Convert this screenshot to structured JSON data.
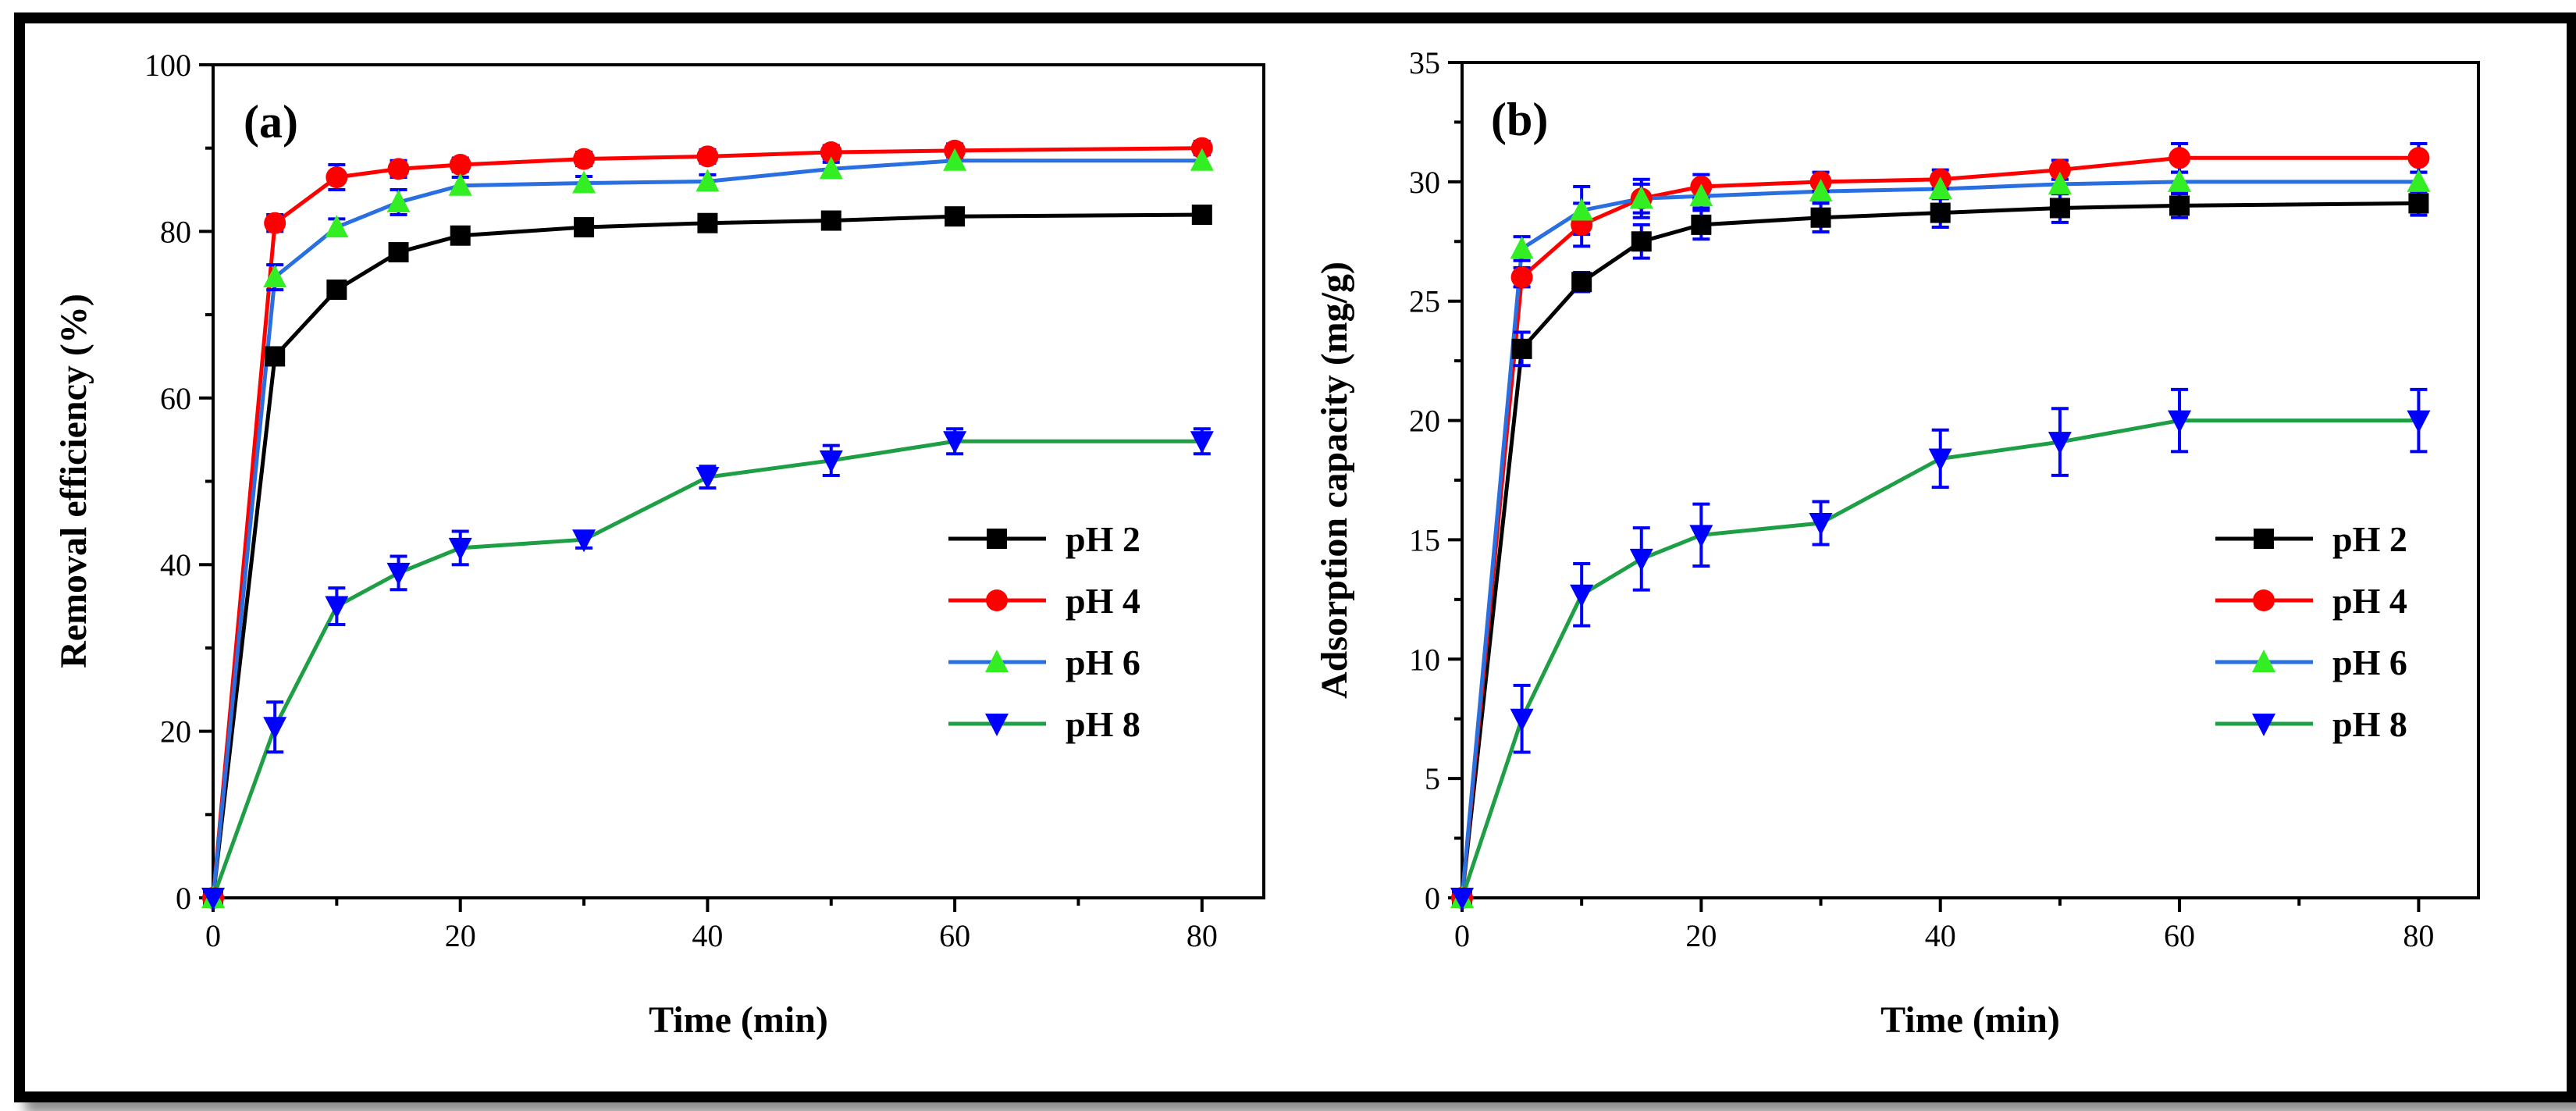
{
  "chart_data": [
    {
      "type": "line",
      "panel_label": "(a)",
      "xlabel": "Time (min)",
      "ylabel": "Removal efficiency (%)",
      "xlim": [
        0,
        85
      ],
      "ylim": [
        0,
        100
      ],
      "xticks": [
        "0",
        "20",
        "40",
        "60",
        "80"
      ],
      "yticks": [
        "0",
        "20",
        "40",
        "60",
        "80",
        "100"
      ],
      "x": [
        0,
        5,
        10,
        15,
        20,
        30,
        40,
        50,
        60,
        80
      ],
      "legend_position": "center-right",
      "series": [
        {
          "name": "pH 2",
          "color": "#000000",
          "marker": "square",
          "values": [
            0,
            65,
            73,
            77.5,
            79.5,
            80.5,
            81,
            81.3,
            81.8,
            82
          ],
          "errors": [
            0,
            1,
            1,
            1,
            0.8,
            0.8,
            0.8,
            0.8,
            0.8,
            0.8
          ]
        },
        {
          "name": "pH 4",
          "color": "#ff0000",
          "marker": "circle",
          "values": [
            0,
            81,
            86.5,
            87.5,
            88,
            88.7,
            89,
            89.5,
            89.7,
            90
          ],
          "errors": [
            0,
            1,
            1.5,
            1,
            0.8,
            0.8,
            0.8,
            0.8,
            0.8,
            0.8
          ]
        },
        {
          "name": "pH 6",
          "color": "#2a6fe0",
          "marker": "triangle-up",
          "values": [
            0,
            74.5,
            80.5,
            83.5,
            85.5,
            85.8,
            86,
            87.5,
            88.5,
            88.5
          ],
          "errors": [
            0,
            1.5,
            1,
            1.5,
            1,
            0.8,
            0.8,
            0.8,
            0.8,
            0.8
          ]
        },
        {
          "name": "pH 8",
          "color": "#1e9e45",
          "marker": "triangle-down",
          "values": [
            0,
            20.5,
            35,
            39,
            42,
            43,
            50.5,
            52.5,
            54.8,
            54.8
          ],
          "errors": [
            0,
            3,
            2.2,
            2,
            2,
            1,
            1.3,
            1.8,
            1.5,
            1.5
          ]
        }
      ],
      "marker_colors": {
        "pH 2": "#000000",
        "pH 4": "#ff0000",
        "pH 6": "#33ee22",
        "pH 8": "#0000ff"
      },
      "errorbar_color": "#0000ff"
    },
    {
      "type": "line",
      "panel_label": "(b)",
      "xlabel": "Time (min)",
      "ylabel": "Adsorption capacity (mg/g)",
      "xlim": [
        0,
        85
      ],
      "ylim": [
        0,
        35
      ],
      "xticks": [
        "0",
        "20",
        "40",
        "60",
        "80"
      ],
      "yticks": [
        "0",
        "5",
        "10",
        "15",
        "20",
        "25",
        "30",
        "35"
      ],
      "x": [
        0,
        5,
        10,
        15,
        20,
        30,
        40,
        50,
        60,
        80
      ],
      "legend_position": "center-right",
      "series": [
        {
          "name": "pH 2",
          "color": "#000000",
          "marker": "square",
          "values": [
            0,
            23,
            25.8,
            27.5,
            28.2,
            28.5,
            28.7,
            28.9,
            29,
            29.1
          ],
          "errors": [
            0,
            0.7,
            0.4,
            0.7,
            0.6,
            0.6,
            0.6,
            0.6,
            0.5,
            0.5
          ]
        },
        {
          "name": "pH 4",
          "color": "#ff0000",
          "marker": "circle",
          "values": [
            0,
            26,
            28.2,
            29.3,
            29.8,
            30,
            30.1,
            30.5,
            31,
            31
          ],
          "errors": [
            0,
            0.4,
            0.9,
            0.8,
            0.5,
            0.4,
            0.4,
            0.4,
            0.6,
            0.6
          ]
        },
        {
          "name": "pH 6",
          "color": "#2a6fe0",
          "marker": "triangle-up",
          "values": [
            0,
            27.2,
            28.8,
            29.3,
            29.4,
            29.6,
            29.7,
            29.9,
            30,
            30
          ],
          "errors": [
            0,
            0.5,
            1,
            0.6,
            0.5,
            0.4,
            0.4,
            0.4,
            0.4,
            0.4
          ]
        },
        {
          "name": "pH 8",
          "color": "#1e9e45",
          "marker": "triangle-down",
          "values": [
            0,
            7.5,
            12.7,
            14.2,
            15.2,
            15.7,
            18.4,
            19.1,
            20,
            20
          ],
          "errors": [
            0,
            1.4,
            1.3,
            1.3,
            1.3,
            0.9,
            1.2,
            1.4,
            1.3,
            1.3
          ]
        }
      ],
      "marker_colors": {
        "pH 2": "#000000",
        "pH 4": "#ff0000",
        "pH 6": "#33ee22",
        "pH 8": "#0000ff"
      },
      "errorbar_color": "#0000ff"
    }
  ]
}
